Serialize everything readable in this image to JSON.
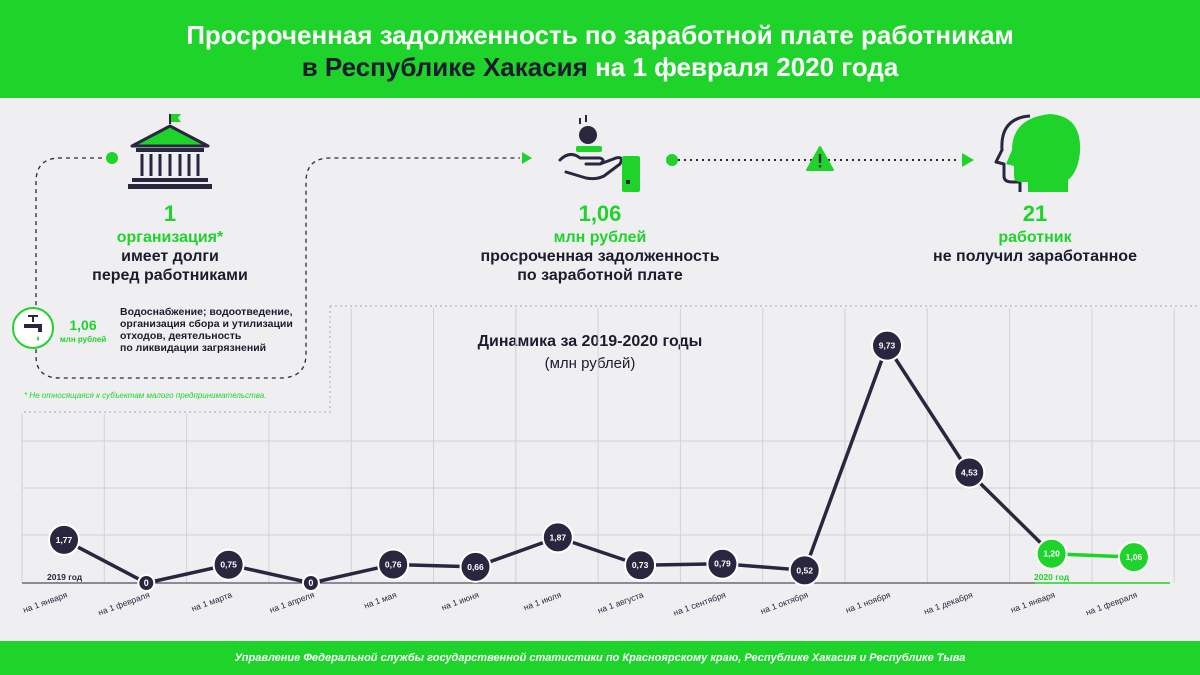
{
  "header": {
    "title_line1": "Просроченная задолженность по заработной плате работникам",
    "title_line2_region": "в Республике Хакасия",
    "title_line2_rest": "на 1 февраля 2020 года"
  },
  "colors": {
    "green": "#1ed42a",
    "dark": "#2a2640",
    "background": "#efeff1"
  },
  "stats": {
    "organizations": {
      "number": "1",
      "label": "организация*",
      "text1": "имеет долги",
      "text2": "перед работниками",
      "icon": "bank-building-icon"
    },
    "debt": {
      "number": "1,06",
      "label": "млн рублей",
      "text1": "просроченная задолженность",
      "text2": "по заработной плате",
      "icon": "hand-coins-phone-icon"
    },
    "workers": {
      "number": "21",
      "label": "работник",
      "text1": "не получил заработанное",
      "icon": "person-head-icon"
    }
  },
  "sector": {
    "icon": "water-tap-icon",
    "value": "1,06",
    "unit": "млн рублей",
    "lines": [
      "Водоснабжение; водоотведение,",
      "организация сбора и утилизации",
      "отходов, деятельность",
      "по ликвидации загрязнений"
    ]
  },
  "note": "* Не относящаяся к субъектам малого предпринимательства.",
  "warning_icon": "warning-triangle-icon",
  "chart_data": {
    "type": "line",
    "title": "Динамика за 2019-2020 годы",
    "subtitle": "(млн рублей)",
    "categories": [
      "на 1 января",
      "на 1 февраля",
      "на 1 марта",
      "на 1 апреля",
      "на 1 мая",
      "на 1 июня",
      "на 1 июля",
      "на 1 августа",
      "на 1 сентября",
      "на 1 октября",
      "на 1 ноября",
      "на 1 декабря",
      "на 1 января",
      "на 1 февраля"
    ],
    "values": [
      1.77,
      0,
      0.75,
      0,
      0.76,
      0.66,
      1.87,
      0.73,
      0.79,
      0.52,
      9.73,
      4.53,
      1.2,
      1.06
    ],
    "value_labels": [
      "1,77",
      "0",
      "0,75",
      "0",
      "0,76",
      "0,66",
      "1,87",
      "0,73",
      "0,79",
      "0,52",
      "9,73",
      "4,53",
      "1,20",
      "1,06"
    ],
    "series": [
      {
        "name": "2019 год",
        "from": 0,
        "to": 11,
        "color": "#2a2640"
      },
      {
        "name": "2020 год",
        "from": 12,
        "to": 13,
        "color": "#1ed42a"
      }
    ],
    "year_labels": [
      "2019 год",
      "2020 год"
    ],
    "ylim": [
      0,
      11
    ],
    "grid": true
  },
  "footer": "Управление Федеральной службы государственной статистики по Красноярскому краю, Республике Хакасия и Республике Тыва"
}
